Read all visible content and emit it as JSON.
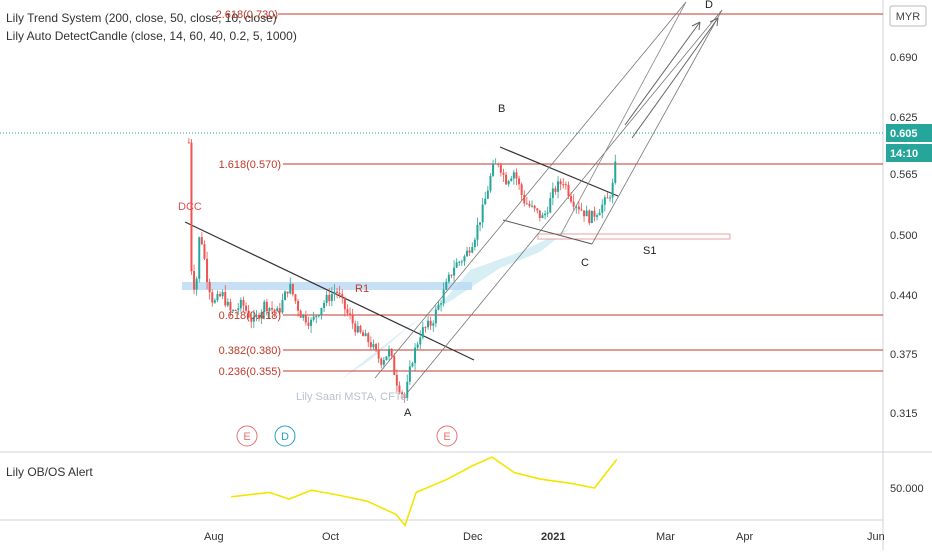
{
  "indicators": {
    "trend": "Lily Trend System (200, close, 50, close, 10, close)",
    "candle": "Lily Auto DetectCandle (close, 14, 60, 40, 0.2, 5, 1000)"
  },
  "oscillator": {
    "title": "Lily OB/OS Alert",
    "level_label": "50.000"
  },
  "watermark": "Lily Saari  MSTA, CFTe",
  "currency": "MYR",
  "last_price": "0.605",
  "countdown": "14:10",
  "fib": [
    {
      "price": 0.73,
      "label": "2.618(0.730)"
    },
    {
      "price": 0.57,
      "label": "1.618(0.570)"
    },
    {
      "price": 0.418,
      "label": "0.618(0.418)"
    },
    {
      "price": 0.38,
      "label": "0.382(0.380)"
    },
    {
      "price": 0.355,
      "label": "0.236(0.355)"
    }
  ],
  "annotations": {
    "dcc": "DCC",
    "r1": "R1",
    "s1": "S1",
    "A": "A",
    "B": "B",
    "C": "C",
    "D": "D",
    "e_badge": "E",
    "d_badge": "D",
    "e_badge_2": "E"
  },
  "chart_data": {
    "type": "candlestick",
    "y_ticks": [
      "0.690",
      "0.625",
      "0.565",
      "0.500",
      "0.440",
      "0.375",
      "0.315"
    ],
    "x_ticks": [
      "Aug",
      "Oct",
      "Dec",
      "2021",
      "Mar",
      "Apr",
      "Jun"
    ],
    "ylim": [
      0.28,
      0.74
    ],
    "close_path": [
      [
        "2020-07-27",
        0.6
      ],
      [
        "2020-07-28",
        0.47
      ],
      [
        "2020-07-30",
        0.44
      ],
      [
        "2020-08-01",
        0.51
      ],
      [
        "2020-08-04",
        0.46
      ],
      [
        "2020-08-07",
        0.43
      ],
      [
        "2020-08-11",
        0.44
      ],
      [
        "2020-08-15",
        0.42
      ],
      [
        "2020-08-20",
        0.43
      ],
      [
        "2020-08-25",
        0.41
      ],
      [
        "2020-08-30",
        0.43
      ],
      [
        "2020-09-05",
        0.42
      ],
      [
        "2020-09-10",
        0.45
      ],
      [
        "2020-09-15",
        0.42
      ],
      [
        "2020-09-20",
        0.41
      ],
      [
        "2020-09-25",
        0.43
      ],
      [
        "2020-10-01",
        0.445
      ],
      [
        "2020-10-06",
        0.42
      ],
      [
        "2020-10-11",
        0.4
      ],
      [
        "2020-10-16",
        0.39
      ],
      [
        "2020-10-21",
        0.37
      ],
      [
        "2020-10-25",
        0.38
      ],
      [
        "2020-10-28",
        0.35
      ],
      [
        "2020-11-01",
        0.33
      ],
      [
        "2020-11-04",
        0.37
      ],
      [
        "2020-11-08",
        0.4
      ],
      [
        "2020-11-13",
        0.41
      ],
      [
        "2020-11-18",
        0.44
      ],
      [
        "2020-11-23",
        0.47
      ],
      [
        "2020-11-28",
        0.48
      ],
      [
        "2020-12-02",
        0.5
      ],
      [
        "2020-12-06",
        0.53
      ],
      [
        "2020-12-10",
        0.57
      ],
      [
        "2020-12-13",
        0.58
      ],
      [
        "2020-12-16",
        0.56
      ],
      [
        "2020-12-20",
        0.57
      ],
      [
        "2020-12-24",
        0.54
      ],
      [
        "2020-12-28",
        0.53
      ],
      [
        "2021-01-02",
        0.52
      ],
      [
        "2021-01-07",
        0.55
      ],
      [
        "2021-01-11",
        0.56
      ],
      [
        "2021-01-15",
        0.54
      ],
      [
        "2021-01-19",
        0.53
      ],
      [
        "2021-01-23",
        0.52
      ],
      [
        "2021-01-27",
        0.53
      ],
      [
        "2021-01-31",
        0.54
      ],
      [
        "2021-02-03",
        0.56
      ],
      [
        "2021-02-04",
        0.605
      ]
    ],
    "oscillator": [
      [
        "2020-08-15",
        46
      ],
      [
        "2020-09-01",
        48
      ],
      [
        "2020-09-10",
        45
      ],
      [
        "2020-09-20",
        49
      ],
      [
        "2020-10-01",
        47
      ],
      [
        "2020-10-15",
        44
      ],
      [
        "2020-10-28",
        38
      ],
      [
        "2020-11-01",
        33
      ],
      [
        "2020-11-06",
        48
      ],
      [
        "2020-11-20",
        54
      ],
      [
        "2020-12-01",
        60
      ],
      [
        "2020-12-10",
        64
      ],
      [
        "2020-12-20",
        57
      ],
      [
        "2021-01-01",
        54
      ],
      [
        "2021-01-15",
        52
      ],
      [
        "2021-01-25",
        50
      ],
      [
        "2021-02-04",
        63
      ]
    ],
    "grid": false
  }
}
